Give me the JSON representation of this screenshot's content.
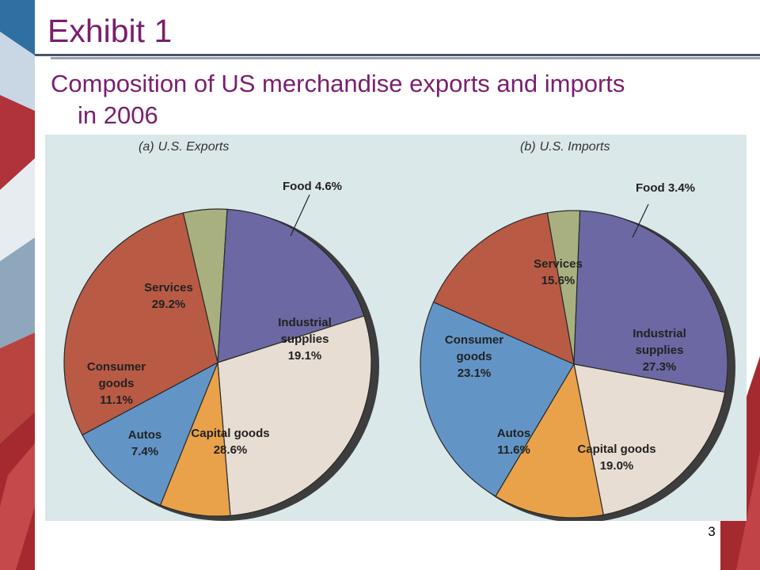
{
  "slide": {
    "title": "Exhibit 1",
    "subtitle_line1": "Composition of US merchandise exports and imports",
    "subtitle_line2": "in 2006",
    "page_number": "3"
  },
  "colors": {
    "title": "#7a1f6e",
    "panel": "#dbe8ea",
    "Food": "#a9b080",
    "Industrial supplies": "#6b68a3",
    "Capital goods": "#e8ddd2",
    "Autos": "#e9a24a",
    "Consumer goods": "#6295c6",
    "Services": "#b95a45"
  },
  "chart_data": [
    {
      "type": "pie",
      "title_prefix": "(a)",
      "title": "U.S. Exports",
      "slices": [
        {
          "name": "Food",
          "value": 4.6,
          "label_lines": [
            "Food 4.6%"
          ]
        },
        {
          "name": "Industrial supplies",
          "value": 19.1,
          "label_lines": [
            "Industrial",
            "supplies",
            "19.1%"
          ]
        },
        {
          "name": "Capital goods",
          "value": 28.6,
          "label_lines": [
            "Capital goods",
            "28.6%"
          ]
        },
        {
          "name": "Autos",
          "value": 7.4,
          "label_lines": [
            "Autos",
            "7.4%"
          ]
        },
        {
          "name": "Consumer goods",
          "value": 11.1,
          "label_lines": [
            "Consumer",
            "goods",
            "11.1%"
          ]
        },
        {
          "name": "Services",
          "value": 29.2,
          "label_lines": [
            "Services",
            "29.2%"
          ]
        }
      ]
    },
    {
      "type": "pie",
      "title_prefix": "(b)",
      "title": "U.S. Imports",
      "slices": [
        {
          "name": "Food",
          "value": 3.4,
          "label_lines": [
            "Food 3.4%"
          ]
        },
        {
          "name": "Industrial supplies",
          "value": 27.3,
          "label_lines": [
            "Industrial",
            "supplies",
            "27.3%"
          ]
        },
        {
          "name": "Capital goods",
          "value": 19.0,
          "label_lines": [
            "Capital goods",
            "19.0%"
          ]
        },
        {
          "name": "Autos",
          "value": 11.6,
          "label_lines": [
            "Autos",
            "11.6%"
          ]
        },
        {
          "name": "Consumer goods",
          "value": 23.1,
          "label_lines": [
            "Consumer",
            "goods",
            "23.1%"
          ]
        },
        {
          "name": "Services",
          "value": 15.6,
          "label_lines": [
            "Services",
            "15.6%"
          ]
        }
      ]
    }
  ]
}
